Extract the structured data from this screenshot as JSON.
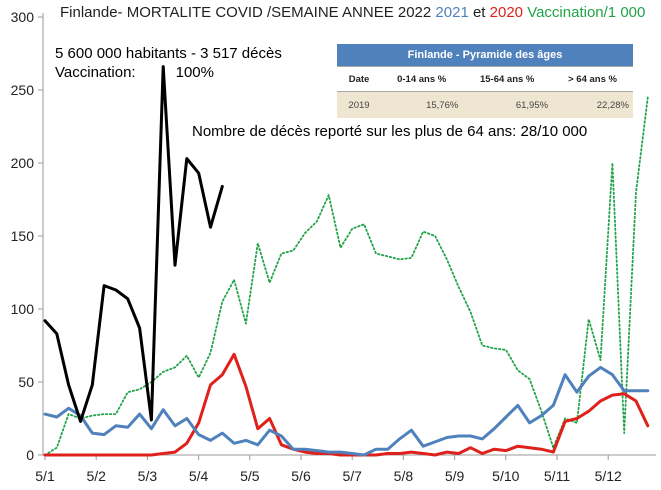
{
  "title": {
    "part1": "Finlande- MORTALITE COVID /SEMAINE ANNEE 2022",
    "year2021": "2021",
    "connector": "et",
    "year2020": "2020",
    "vaccination": "Vaccination/1 000"
  },
  "info": {
    "line1": "5 600 000 habitants - 3 517 décès",
    "vacc_label": "Vaccination:",
    "vacc_value": "100%"
  },
  "note": "Nombre de décès reporté sur les plus de 64 ans: 28/10 000",
  "pyramid": {
    "title": "Finlande - Pyramide des âges",
    "headers": [
      "Date",
      "0-14 ans %",
      "15-64 ans %",
      "> 64 ans %"
    ],
    "row": [
      "2019",
      "15,76%",
      "61,95%",
      "22,28%"
    ]
  },
  "colors": {
    "series_2022": "#000000",
    "series_2021": "#4f81bd",
    "series_2020": "#e0201b",
    "vaccination": "#21a348",
    "axis": "#9a9a9a",
    "text": "#222222"
  },
  "chart_data": {
    "type": "line",
    "x_tick_labels": [
      "5/1",
      "5/2",
      "5/3",
      "5/4",
      "5/5",
      "5/6",
      "5/7",
      "5/8",
      "5/9",
      "5/10",
      "5/11",
      "5/12"
    ],
    "y_ticks": [
      "0",
      "50",
      "100",
      "150",
      "200",
      "250",
      "300"
    ],
    "ylim": [
      0,
      300
    ],
    "grid": false,
    "series": [
      {
        "key": "2022",
        "style": "solid",
        "values": [
          92,
          83,
          48,
          23,
          48,
          116,
          113,
          107,
          87,
          24,
          266,
          130,
          203,
          193,
          156,
          184
        ]
      },
      {
        "key": "2021",
        "style": "solid",
        "values": [
          28,
          26,
          32,
          27,
          15,
          14,
          20,
          19,
          28,
          18,
          31,
          20,
          25,
          14,
          10,
          15,
          8,
          10,
          7,
          17,
          13,
          4,
          4,
          3,
          2,
          2,
          1,
          0,
          4,
          4,
          11,
          17,
          6,
          9,
          12,
          13,
          13,
          11,
          18,
          26,
          34,
          22,
          27,
          34,
          55,
          43,
          54,
          60,
          55,
          44,
          44,
          44
        ]
      },
      {
        "key": "2020",
        "style": "solid",
        "values": [
          0,
          0,
          0,
          0,
          0,
          0,
          0,
          0,
          0,
          0,
          1,
          2,
          8,
          22,
          48,
          55,
          69,
          47,
          18,
          25,
          7,
          4,
          2,
          1,
          1,
          0,
          0,
          0,
          0,
          1,
          1,
          2,
          1,
          0,
          2,
          1,
          5,
          1,
          4,
          3,
          6,
          5,
          4,
          2,
          23,
          25,
          30,
          37,
          41,
          42,
          37,
          20
        ]
      },
      {
        "key": "vaccination",
        "style": "dotted",
        "values": [
          0,
          5,
          28,
          25,
          27,
          28,
          28,
          43,
          45,
          50,
          57,
          60,
          68,
          53,
          70,
          105,
          120,
          90,
          145,
          118,
          138,
          140,
          152,
          160,
          178,
          142,
          155,
          158,
          138,
          136,
          134,
          135,
          153,
          150,
          134,
          115,
          98,
          75,
          73,
          72,
          58,
          52,
          30,
          5,
          25,
          22,
          93,
          65,
          200,
          15,
          180,
          245
        ]
      }
    ]
  }
}
